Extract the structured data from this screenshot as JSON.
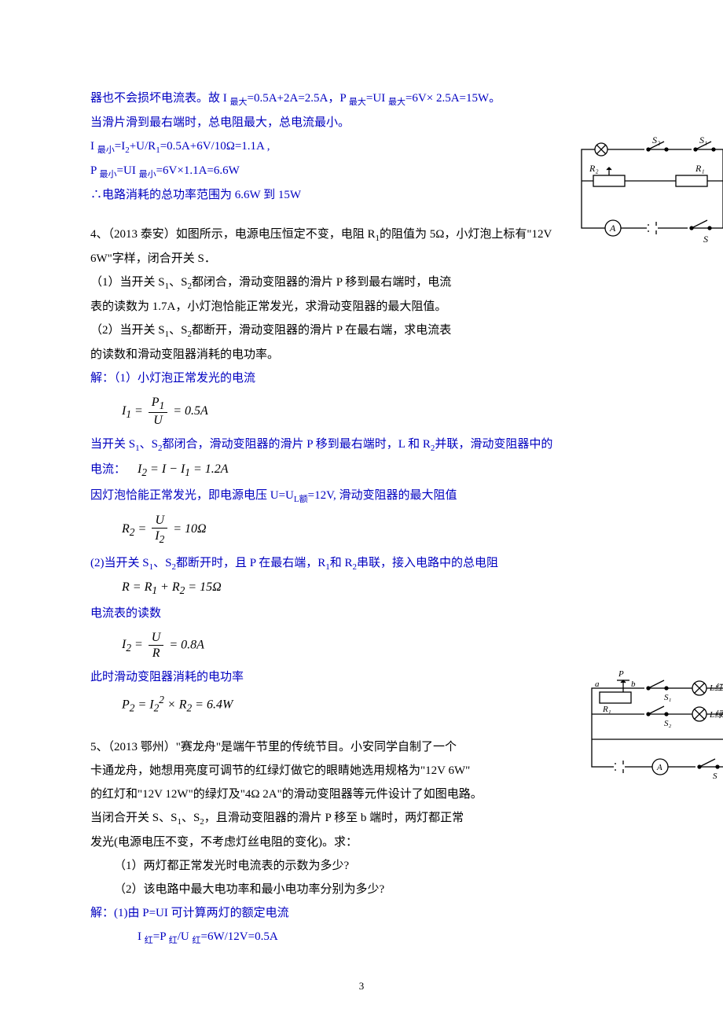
{
  "p1": {
    "l1": "器也不会损坏电流表。故 I ",
    "l1s": "最大",
    "l1b": "=0.5A+2A=2.5A，P ",
    "l1s2": "最大",
    "l1c": "=UI ",
    "l1s3": "最大",
    "l1d": "=6V× 2.5A=15W。",
    "l2": "当滑片滑到最右端时，总电阻最大，总电流最小。",
    "l3a": "I ",
    "l3s": "最小",
    "l3b": "=I",
    "l3s2": "2",
    "l3c": "+U/R",
    "l3s3": "1",
    "l3d": "=0.5A+6V/10Ω=1.1A ,",
    "l4a": "P ",
    "l4s": "最小",
    "l4b": "=UI ",
    "l4s2": "最小",
    "l4c": "=6V×1.1A=6.6W",
    "l5": "∴电路消耗的总功率范围为 6.6W 到 15W"
  },
  "p2": {
    "t1": "4、（2013 泰安）如图所示，电源电压恒定不变，电阻 R",
    "t1s": "1",
    "t1b": "的阻值为 5Ω，小灯泡上标有\"12V",
    "t2": "6W\"字样，闭合开关 S．",
    "t3": "（1）当开关 S",
    "t3s": "1",
    "t3b": "、S",
    "t3s2": "2",
    "t3c": "都闭合，滑动变阻器的滑片 P 移到最右端时，电流",
    "t4": "表的读数为 1.7A，小灯泡恰能正常发光，求滑动变阻器的最大阻值。",
    "t5": "（2）当开关 S",
    "t5s": "1",
    "t5b": "、S",
    "t5s2": "2",
    "t5c": "都断开，滑动变阻器的滑片 P 在最右端，求电流表",
    "t6": "的读数和滑动变阻器消耗的电功率。",
    "s1": "解：（1）小灯泡正常发光的电流",
    "f1": {
      "lhs": "I<sub>1</sub> =",
      "num": "P<sub>1</sub>",
      "den": "U",
      "rhs": "= 0.5A"
    },
    "s2": "当开关 S",
    "s2s": "1",
    "s2b": "、S",
    "s2s2": "2",
    "s2c": "都闭合，滑动变阻器的滑片 P 移到最右端时，L 和 R",
    "s2s3": "2",
    "s2d": "并联，滑动变阻器中的",
    "s3": "电流：",
    "f2": "I<sub>2</sub> = I − I<sub>1</sub> = 1.2A",
    "s4": "因灯泡恰能正常发光，即电源电压 U=U",
    "s4s": "L额",
    "s4b": "=12V,  滑动变阻器的最大阻值",
    "f3": {
      "lhs": "R<sub>2</sub> =",
      "num": "U",
      "den": "I<sub>2</sub>",
      "rhs": "= 10Ω"
    },
    "s5": "(2)当开关 S",
    "s5s": "1",
    "s5b": "、S",
    "s5s2": "2",
    "s5c": "都断开时，且 P 在最右端，R",
    "s5s3": "1",
    "s5d": "和 R",
    "s5s4": "2",
    "s5e": "串联，接入电路中的总电阻",
    "f4": "R = R<sub>1</sub> + R<sub>2</sub> = 15Ω",
    "s6": "电流表的读数",
    "f5": {
      "lhs": "I<sub>2</sub> =",
      "num": "U",
      "den": "R",
      "rhs": "= 0.8A"
    },
    "s7": "此时滑动变阻器消耗的电功率",
    "f6": "P<sub>2</sub> = I<sub>2</sub><sup>2</sup> × R<sub>2</sub> = 6.4W"
  },
  "p3": {
    "t1": "5、（2013 鄂州）\"赛龙舟\"是端午节里的传统节目。小安同学自制了一个",
    "t2": "卡通龙舟，她想用亮度可调节的红绿灯做它的眼睛她选用规格为\"12V 6W\"",
    "t3": "的红灯和\"12V 12W\"的绿灯及\"4Ω 2A\"的滑动变阻器等元件设计了如图电路。",
    "t4": "当闭合开关 S、S",
    "t4s": "1",
    "t4b": "、S",
    "t4s2": "2",
    "t4c": "，且滑动变阻器的滑片 P 移至 b 端时，两灯都正常",
    "t5": "发光(电源电压不变，不考虑灯丝电阻的变化)。求：",
    "q1": "（1）两灯都正常发光时电流表的示数为多少?",
    "q2": "（2）该电路中最大电功率和最小电功率分别为多少?",
    "s1": "解：(1)由 P=UI 可计算两灯的额定电流",
    "s2a": "I ",
    "s2s": "红",
    "s2b": "=P ",
    "s2s2": "红",
    "s2c": "/U ",
    "s2s3": "红",
    "s2d": "=6W/12V=0.5A"
  },
  "pagenum": "3",
  "cir1": {
    "labels": {
      "s2": "S₂",
      "s1": "S₁",
      "r2": "R₂",
      "r1": "R₁",
      "a": "A",
      "s": "S"
    }
  },
  "cir2": {
    "labels": {
      "p": "P",
      "a": "a",
      "b": "b",
      "r1": "R₁",
      "s1": "S₁",
      "s2": "S₂",
      "lr": "L红",
      "lg": "L绿",
      "am": "A",
      "s": "S"
    }
  }
}
